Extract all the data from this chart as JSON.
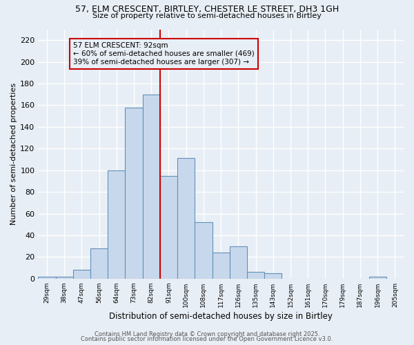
{
  "title": "57, ELM CRESCENT, BIRTLEY, CHESTER LE STREET, DH3 1GH",
  "subtitle": "Size of property relative to semi-detached houses in Birtley",
  "xlabel": "Distribution of semi-detached houses by size in Birtley",
  "ylabel": "Number of semi-detached properties",
  "bar_labels": [
    "29sqm",
    "38sqm",
    "47sqm",
    "56sqm",
    "64sqm",
    "73sqm",
    "82sqm",
    "91sqm",
    "100sqm",
    "108sqm",
    "117sqm",
    "126sqm",
    "135sqm",
    "143sqm",
    "152sqm",
    "161sqm",
    "170sqm",
    "179sqm",
    "187sqm",
    "196sqm",
    "205sqm"
  ],
  "bar_values": [
    2,
    2,
    8,
    28,
    100,
    158,
    170,
    95,
    111,
    52,
    24,
    30,
    6,
    5,
    0,
    0,
    0,
    0,
    0,
    2,
    0
  ],
  "bar_color": "#c8d8ec",
  "bar_edge_color": "#6090b8",
  "vline_x_index": 7,
  "annotation_title": "57 ELM CRESCENT: 92sqm",
  "annotation_line1": "← 60% of semi-detached houses are smaller (469)",
  "annotation_line2": "39% of semi-detached houses are larger (307) →",
  "annotation_box_color": "#cc0000",
  "vline_color": "#cc0000",
  "ylim": [
    0,
    230
  ],
  "yticks": [
    0,
    20,
    40,
    60,
    80,
    100,
    120,
    140,
    160,
    180,
    200,
    220
  ],
  "background_color": "#e8eef5",
  "grid_color": "#ffffff",
  "footer_line1": "Contains HM Land Registry data © Crown copyright and database right 2025.",
  "footer_line2": "Contains public sector information licensed under the Open Government Licence v3.0."
}
